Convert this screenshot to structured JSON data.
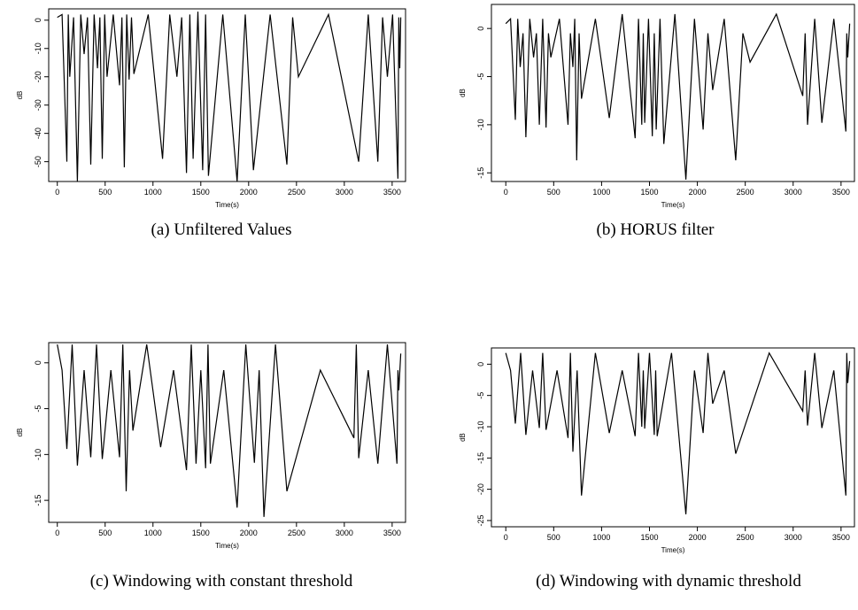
{
  "chart_data": [
    {
      "type": "line",
      "caption": "(a) Unfiltered Values",
      "xlabel": "Time(s)",
      "ylabel": "dB",
      "color": "#000000",
      "xlim": [
        -90,
        3640
      ],
      "ylim": [
        -57,
        4
      ],
      "xticks": [
        0,
        500,
        1000,
        1500,
        2000,
        2500,
        3000,
        3500
      ],
      "yticks": [
        0,
        -10,
        -20,
        -30,
        -40,
        -50
      ],
      "x": [
        0,
        50,
        100,
        115,
        130,
        170,
        210,
        245,
        280,
        315,
        350,
        385,
        420,
        445,
        470,
        495,
        520,
        585,
        650,
        675,
        700,
        725,
        750,
        775,
        800,
        950,
        1100,
        1175,
        1250,
        1300,
        1350,
        1385,
        1420,
        1470,
        1520,
        1550,
        1580,
        1730,
        1880,
        1965,
        2050,
        2225,
        2400,
        2460,
        2520,
        2835,
        3150,
        3250,
        3350,
        3400,
        3450,
        3505,
        3560,
        3570,
        3580,
        3590
      ],
      "values": [
        1,
        2,
        -50,
        2,
        -20,
        1,
        -57,
        2,
        -12,
        1,
        -51,
        2,
        -17,
        1,
        -49,
        2,
        -20,
        2,
        -23,
        1,
        -52,
        2,
        -21,
        1,
        -19,
        2,
        -49,
        2,
        -20,
        1,
        -54,
        2,
        -49,
        3,
        -53,
        2,
        -55,
        2,
        -57,
        2,
        -53,
        2,
        -51,
        1,
        -20,
        2,
        -50,
        2,
        -50,
        1,
        -20,
        2,
        -56,
        1,
        -17,
        1
      ]
    },
    {
      "type": "line",
      "caption": "(b) HORUS filter",
      "xlabel": "Time(s)",
      "ylabel": "dB",
      "color": "#000000",
      "xlim": [
        -150,
        3640
      ],
      "ylim": [
        -15.9,
        2.5
      ],
      "xticks": [
        0,
        500,
        1000,
        1500,
        2000,
        2500,
        3000,
        3500
      ],
      "yticks": [
        0,
        -5,
        -10,
        -15
      ],
      "x": [
        0,
        50,
        100,
        125,
        150,
        180,
        210,
        250,
        290,
        320,
        350,
        385,
        420,
        445,
        470,
        560,
        650,
        675,
        700,
        720,
        740,
        765,
        790,
        935,
        1080,
        1215,
        1350,
        1385,
        1420,
        1435,
        1450,
        1490,
        1530,
        1550,
        1570,
        1610,
        1650,
        1765,
        1880,
        1970,
        2060,
        2110,
        2160,
        2280,
        2400,
        2475,
        2550,
        2825,
        3100,
        3125,
        3150,
        3225,
        3300,
        3425,
        3550,
        3560,
        3570,
        3590
      ],
      "values": [
        0.5,
        1,
        -9.5,
        1,
        -4,
        -0.5,
        -11.3,
        1,
        -3,
        -0.5,
        -10,
        1,
        -10.3,
        -0.5,
        -3,
        1,
        -10,
        -0.5,
        -4,
        1,
        -13.7,
        -0.5,
        -7.3,
        1,
        -9.3,
        1.5,
        -11.4,
        1,
        -10,
        -0.5,
        -9.8,
        1,
        -11.2,
        -0.5,
        -10.5,
        1,
        -12,
        1.5,
        -15.7,
        1,
        -10.5,
        -0.5,
        -6.4,
        1,
        -13.7,
        -0.5,
        -3.5,
        1.5,
        -7,
        -0.5,
        -10,
        1,
        -9.8,
        1,
        -10.7,
        -0.5,
        -3,
        0.5
      ]
    },
    {
      "type": "line",
      "caption": "(c) Windowing with constant threshold",
      "xlabel": "Time(s)",
      "ylabel": "dB",
      "color": "#000000",
      "xlim": [
        -90,
        3640
      ],
      "ylim": [
        -17.4,
        2.2
      ],
      "xticks": [
        0,
        500,
        1000,
        1500,
        2000,
        2500,
        3000,
        3500
      ],
      "yticks": [
        0,
        -5,
        -10,
        -15
      ],
      "x": [
        0,
        50,
        100,
        155,
        210,
        280,
        350,
        410,
        470,
        560,
        650,
        685,
        720,
        755,
        790,
        935,
        1080,
        1215,
        1350,
        1400,
        1450,
        1500,
        1550,
        1575,
        1600,
        1740,
        1880,
        1970,
        2060,
        2110,
        2160,
        2280,
        2400,
        2750,
        3100,
        3125,
        3150,
        3250,
        3350,
        3450,
        3550,
        3560,
        3570,
        3590
      ],
      "values": [
        2,
        -0.8,
        -9.4,
        2,
        -11.2,
        -0.8,
        -10.3,
        2,
        -10.5,
        -0.8,
        -10.3,
        2,
        -14,
        -0.8,
        -7.4,
        2,
        -9.2,
        -0.8,
        -11.7,
        2,
        -11,
        -0.8,
        -11.5,
        2,
        -11,
        -0.8,
        -15.8,
        2,
        -10.9,
        -0.8,
        -16.8,
        2,
        -14,
        -0.8,
        -8.2,
        2,
        -10.4,
        -0.8,
        -11,
        2,
        -11,
        -0.8,
        -3,
        1
      ]
    },
    {
      "type": "line",
      "caption": "(d) Windowing with dynamic threshold",
      "xlabel": "Time(s)",
      "ylabel": "dB",
      "color": "#000000",
      "xlim": [
        -150,
        3640
      ],
      "ylim": [
        -26,
        2.6
      ],
      "xticks": [
        0,
        500,
        1000,
        1500,
        2000,
        2500,
        3000,
        3500
      ],
      "yticks": [
        0,
        -5,
        -10,
        -15,
        -20,
        -25
      ],
      "x": [
        0,
        50,
        100,
        155,
        210,
        280,
        350,
        385,
        420,
        535,
        650,
        675,
        700,
        745,
        790,
        935,
        1080,
        1215,
        1350,
        1385,
        1420,
        1435,
        1450,
        1500,
        1550,
        1565,
        1580,
        1730,
        1880,
        1970,
        2060,
        2110,
        2160,
        2280,
        2400,
        2750,
        3100,
        3125,
        3150,
        3225,
        3300,
        3425,
        3550,
        3560,
        3570,
        3590
      ],
      "values": [
        1.8,
        -1,
        -9.5,
        1.8,
        -11.3,
        -1,
        -10.2,
        1.8,
        -10.5,
        -1,
        -11.8,
        1.8,
        -14,
        -1,
        -21,
        1.8,
        -11,
        -1,
        -11.5,
        1.8,
        -10,
        -1,
        -10.3,
        1.8,
        -11.3,
        -1,
        -11.5,
        1.8,
        -24,
        -1,
        -11,
        1.8,
        -6.3,
        -1,
        -14.3,
        1.8,
        -7.5,
        -1,
        -9.8,
        1.8,
        -10.2,
        -1,
        -21,
        1.8,
        -3,
        0.5
      ]
    }
  ]
}
